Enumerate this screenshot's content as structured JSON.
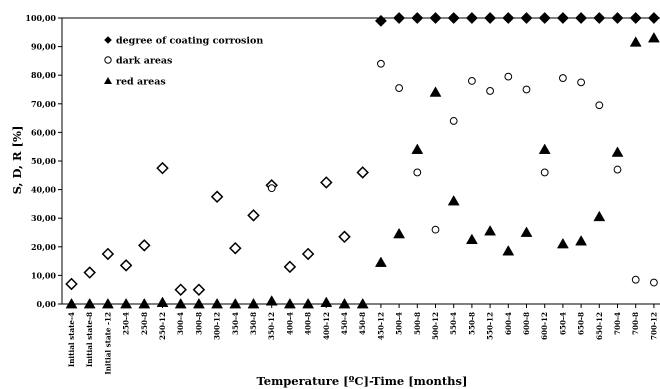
{
  "chart_data": {
    "type": "scatter",
    "xlabel": "Temperature [ºC]-Time [months]",
    "ylabel": "S, D, R [%]",
    "ylim": [
      0,
      100
    ],
    "yticks": [
      "0,00",
      "10,00",
      "20,00",
      "30,00",
      "40,00",
      "50,00",
      "60,00",
      "70,00",
      "80,00",
      "90,00",
      "100,00"
    ],
    "grid": false,
    "legend_position": "top-left",
    "categories": [
      "Initial state-4",
      "Initial state-8",
      "Initial state -12",
      "250-4",
      "250-8",
      "250-12",
      "300-4",
      "300-8",
      "300-12",
      "350-4",
      "350-8",
      "350-12",
      "400-4",
      "400-8",
      "400-12",
      "450-4",
      "450-8",
      "450-12",
      "500-4",
      "500-8",
      "500-12",
      "550-4",
      "550-8",
      "550-12",
      "600-4",
      "600-8",
      "600-12",
      "650-4",
      "650-8",
      "650-12",
      "700-4",
      "700-8",
      "700-12"
    ],
    "series": [
      {
        "name": "degree of coating corrosion",
        "marker": "diamond",
        "values": [
          7,
          11,
          17.5,
          13.5,
          20.5,
          47.5,
          5,
          5,
          37.5,
          19.5,
          31,
          41.5,
          13,
          17.5,
          42.5,
          23.5,
          46,
          99,
          100,
          100,
          100,
          100,
          100,
          100,
          100,
          100,
          100,
          100,
          100,
          100,
          100,
          100,
          100
        ]
      },
      {
        "name": "dark areas",
        "marker": "circle",
        "values": [
          null,
          null,
          null,
          null,
          null,
          null,
          null,
          null,
          null,
          null,
          null,
          40.5,
          null,
          null,
          null,
          null,
          null,
          84,
          75.5,
          46,
          26,
          64,
          78,
          74.5,
          79.5,
          75,
          46,
          79,
          77.5,
          69.5,
          47,
          8.5,
          7.5
        ]
      },
      {
        "name": "red areas",
        "marker": "triangle",
        "values": [
          0,
          0,
          0,
          0,
          0,
          0.5,
          0,
          0,
          0,
          0,
          0,
          1,
          0,
          0,
          0.5,
          0,
          0,
          14.5,
          24.5,
          54,
          74,
          36,
          22.5,
          25.5,
          18.5,
          25,
          54,
          21,
          22,
          30.5,
          53,
          91.5,
          93
        ]
      }
    ]
  }
}
